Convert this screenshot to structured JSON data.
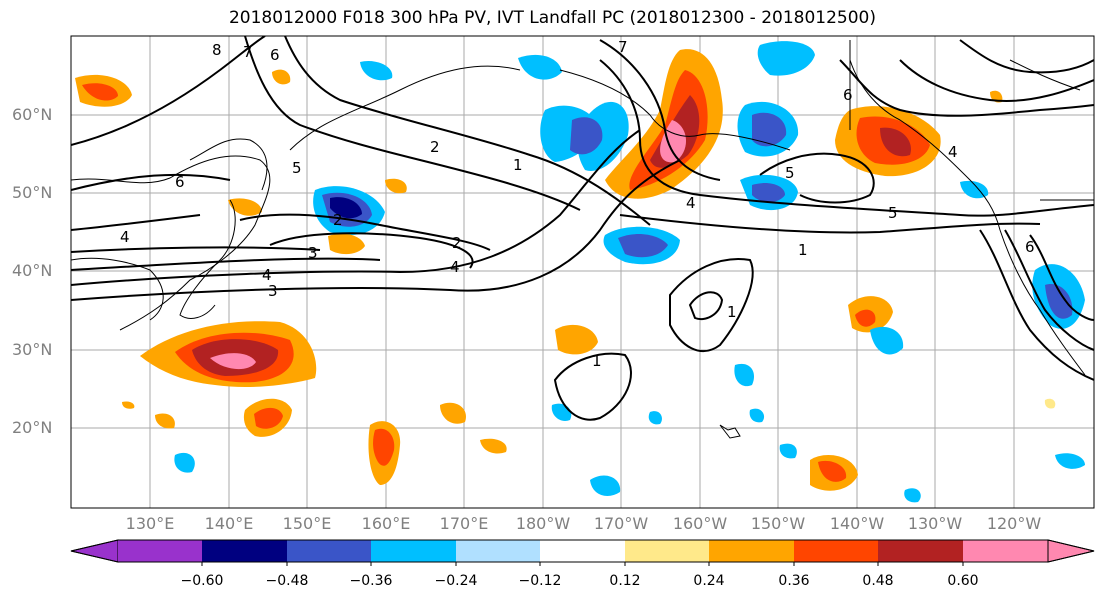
{
  "title": "2018012000 F018 300 hPa PV, IVT Landfall PC (2018012300 - 2018012500)",
  "lat_labels": [
    "60°N",
    "50°N",
    "40°N",
    "30°N",
    "20°N"
  ],
  "lon_labels": [
    "130°E",
    "140°E",
    "150°E",
    "160°E",
    "170°E",
    "180°W",
    "170°W",
    "160°W",
    "150°W",
    "140°W",
    "130°W",
    "120°W"
  ],
  "colorbar": {
    "colors": [
      "#9932cc",
      "#000080",
      "#3a55c8",
      "#00bfff",
      "#b0e0ff",
      "#ffffff",
      "#ffe98a",
      "#ffa500",
      "#ff4500",
      "#b22222",
      "#ff88b0"
    ],
    "ticks": [
      "−0.60",
      "−0.48",
      "−0.36",
      "−0.24",
      "−0.12",
      "0.12",
      "0.24",
      "0.36",
      "0.48",
      "0.60"
    ]
  },
  "contour_labels": [
    "8",
    "7",
    "6",
    "6",
    "5",
    "4",
    "4",
    "3",
    "2",
    "2",
    "1",
    "1",
    "1",
    "1",
    "2",
    "3",
    "5",
    "4",
    "4",
    "5",
    "6",
    "4",
    "7",
    "6"
  ]
}
